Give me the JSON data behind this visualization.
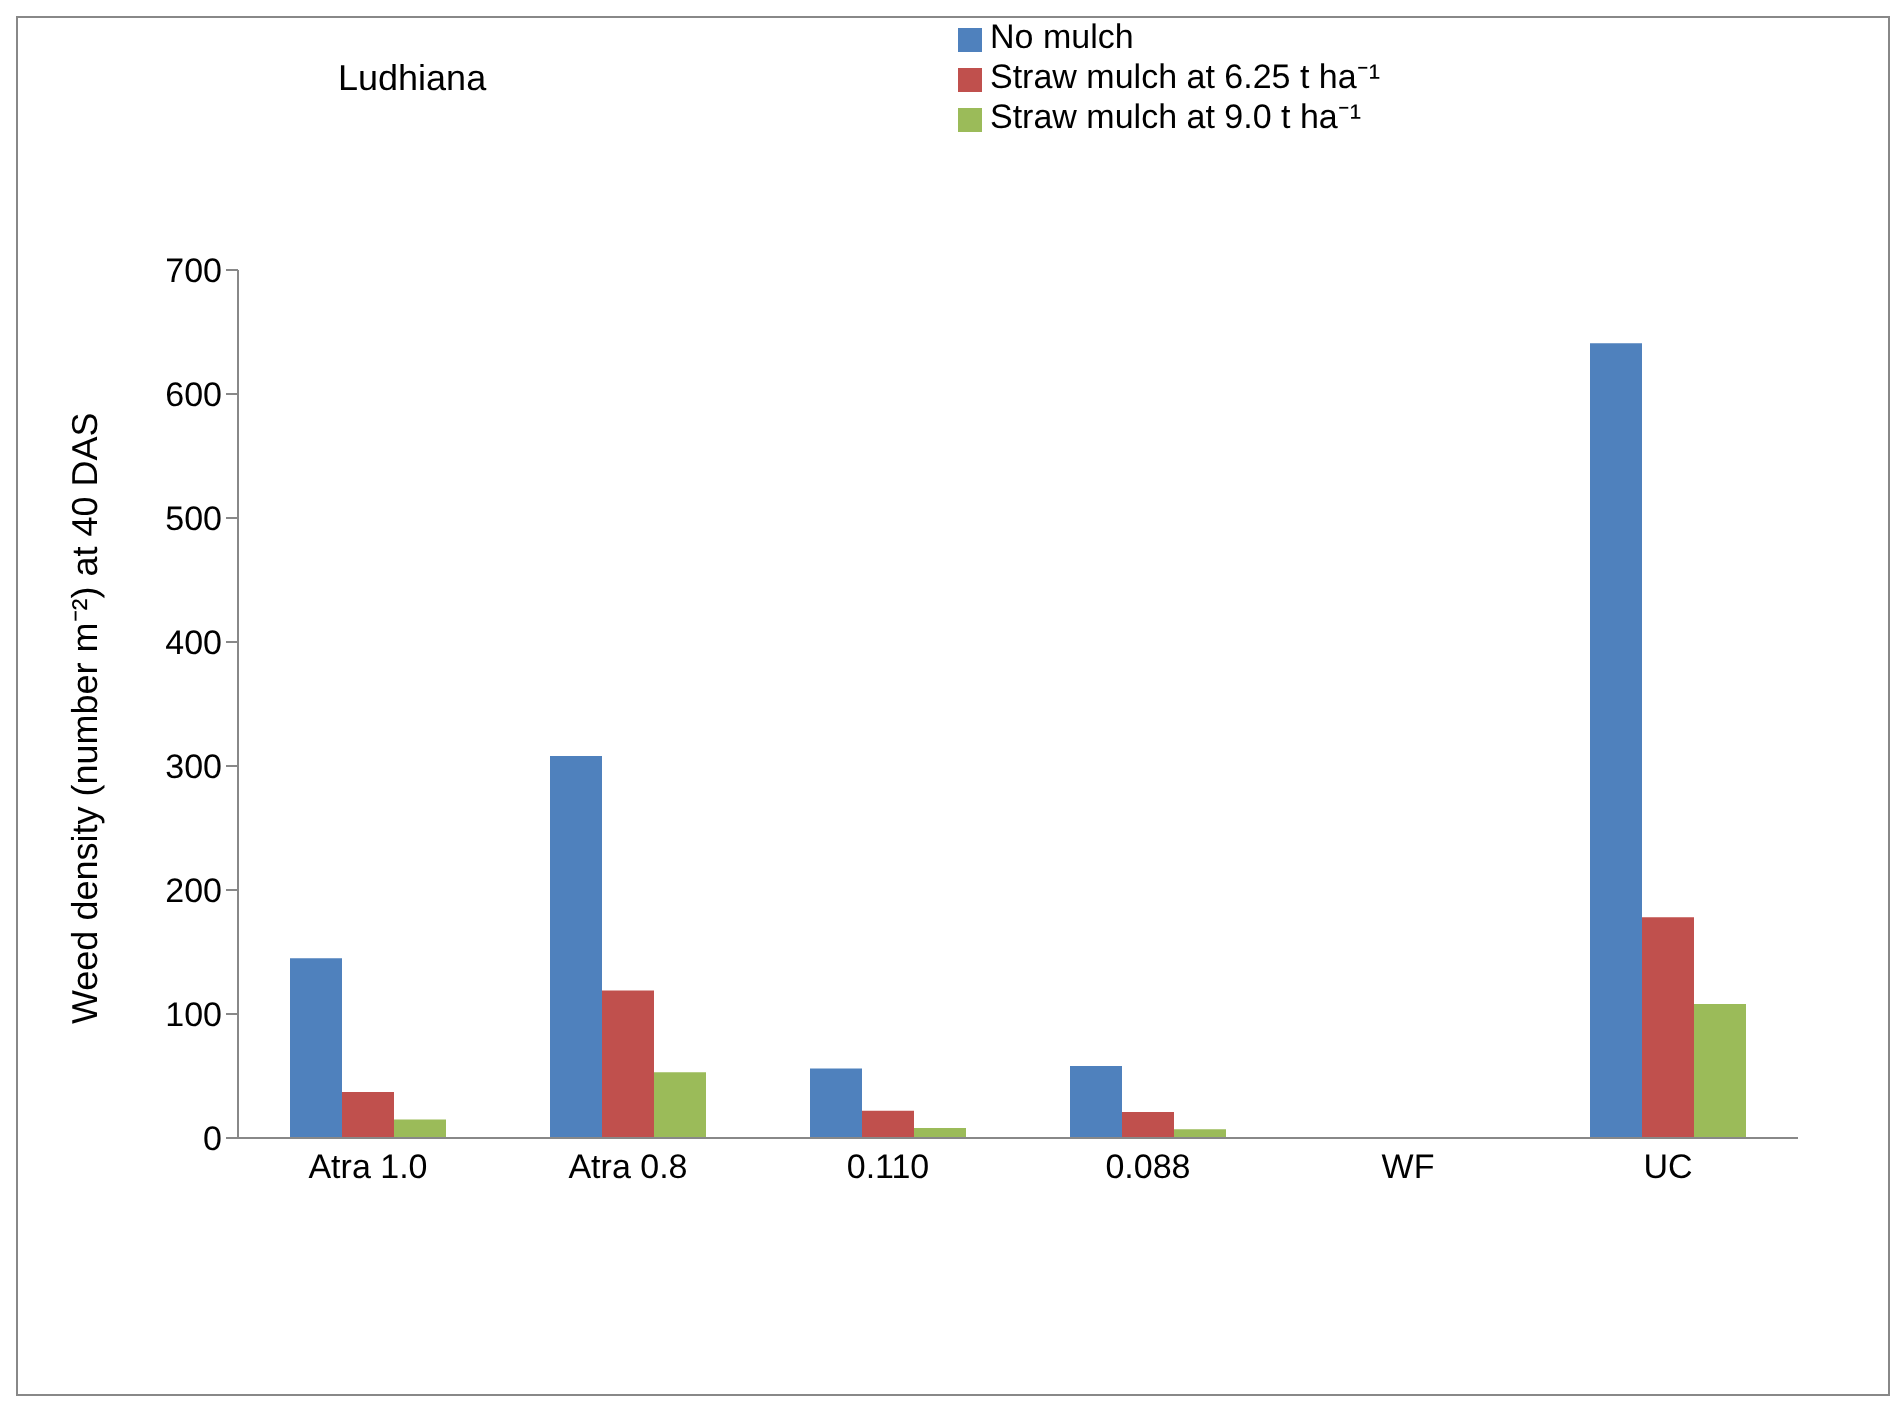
{
  "chart_data": {
    "type": "bar",
    "title": "Ludhiana",
    "ylabel": "Weed density (number m⁻²) at 40 DAS",
    "categories": [
      "Atra 1.0",
      "Atra 0.8",
      "0.110",
      "0.088",
      "WF",
      "UC"
    ],
    "series": [
      {
        "name": "No mulch",
        "color": "#4f81bd",
        "values": [
          145,
          308,
          56,
          58,
          0,
          641
        ]
      },
      {
        "name": "Straw mulch at 6.25 t ha⁻¹",
        "color": "#c0504d",
        "values": [
          37,
          119,
          22,
          21,
          0,
          178
        ]
      },
      {
        "name": "Straw mulch at 9.0 t ha⁻¹",
        "color": "#9bbb59",
        "values": [
          15,
          53,
          8,
          7,
          0,
          108
        ]
      }
    ],
    "ylim": [
      0,
      700
    ],
    "yticks": [
      0,
      100,
      200,
      300,
      400,
      500,
      600,
      700
    ],
    "grid": false,
    "legend": "top"
  }
}
